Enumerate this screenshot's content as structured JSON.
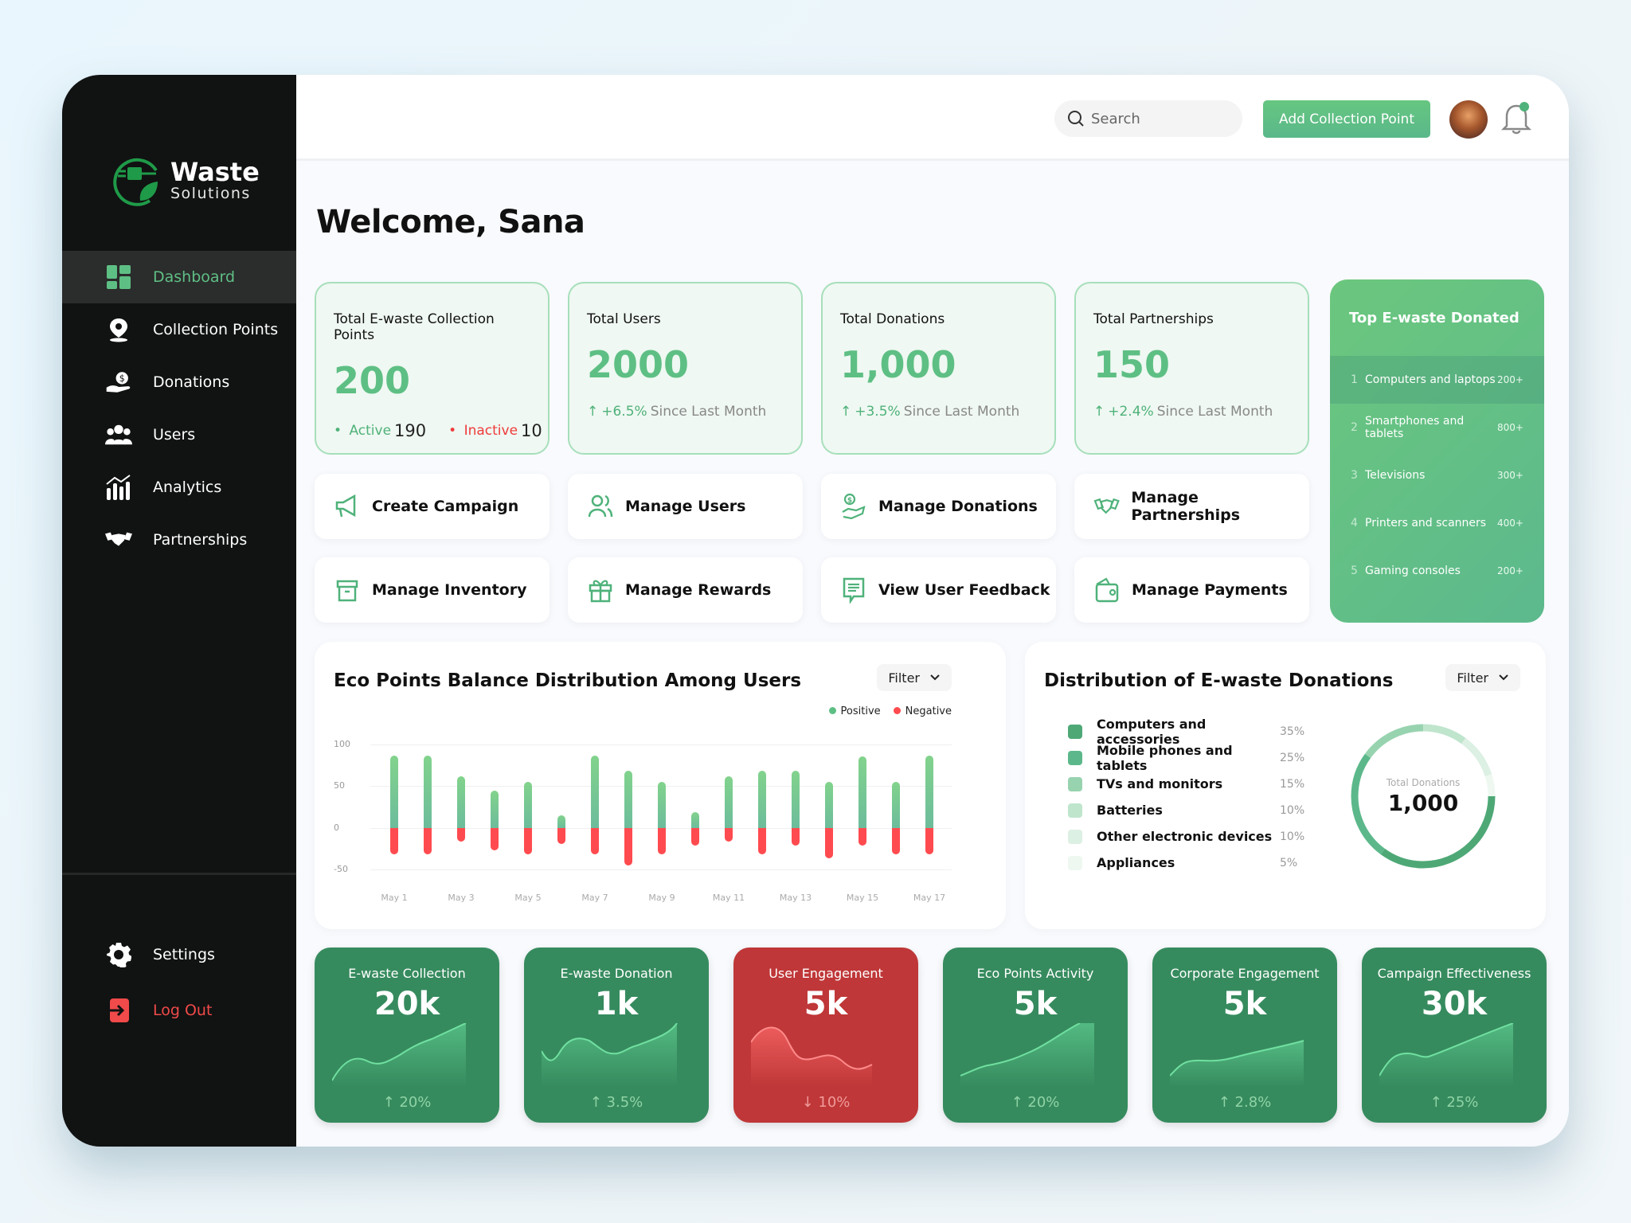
{
  "brand": {
    "name": "Waste",
    "tagline": "Solutions"
  },
  "sidebar": {
    "items": [
      {
        "label": "Dashboard",
        "icon": "dashboard-grid-icon",
        "active": true
      },
      {
        "label": "Collection Points",
        "icon": "map-pin-icon"
      },
      {
        "label": "Donations",
        "icon": "hand-coin-icon"
      },
      {
        "label": "Users",
        "icon": "users-group-icon"
      },
      {
        "label": "Analytics",
        "icon": "bar-chart-trend-icon"
      },
      {
        "label": "Partnerships",
        "icon": "handshake-icon"
      }
    ],
    "bottom": [
      {
        "label": "Settings",
        "icon": "gear-icon"
      },
      {
        "label": "Log Out",
        "icon": "logout-icon"
      }
    ]
  },
  "topbar": {
    "search_placeholder": "Search",
    "add_button": "Add Collection Point",
    "avatar": "user-avatar",
    "notification_badge_color": "#4fb27a"
  },
  "welcome": "Welcome, Sana",
  "stats": [
    {
      "title": "Total E-waste Collection Points",
      "value": "200",
      "active_label": "Active",
      "active_value": "190",
      "inactive_label": "Inactive",
      "inactive_value": "10"
    },
    {
      "title": "Total Users",
      "value": "2000",
      "change": "+6.5%",
      "since": "Since Last Month"
    },
    {
      "title": "Total Donations",
      "value": "1,000",
      "change": "+3.5%",
      "since": "Since Last Month"
    },
    {
      "title": "Total Partnerships",
      "value": "150",
      "change": "+2.4%",
      "since": "Since Last Month"
    }
  ],
  "top_ewaste": {
    "title": "Top E-waste Donated",
    "items": [
      {
        "rank": "1",
        "label": "Computers and laptops",
        "count": "200+"
      },
      {
        "rank": "2",
        "label": "Smartphones and tablets",
        "count": "800+"
      },
      {
        "rank": "3",
        "label": "Televisions",
        "count": "300+"
      },
      {
        "rank": "4",
        "label": "Printers and scanners",
        "count": "400+"
      },
      {
        "rank": "5",
        "label": "Gaming consoles",
        "count": "200+"
      }
    ]
  },
  "actions": [
    {
      "label": "Create Campaign",
      "icon": "megaphone-icon"
    },
    {
      "label": "Manage Users",
      "icon": "users-icon"
    },
    {
      "label": "Manage Donations",
      "icon": "donation-hand-icon"
    },
    {
      "label": "Manage Partnerships",
      "icon": "handshake-icon"
    },
    {
      "label": "Manage Inventory",
      "icon": "box-icon"
    },
    {
      "label": "Manage Rewards",
      "icon": "gift-icon"
    },
    {
      "label": "View User Feedback",
      "icon": "feedback-icon"
    },
    {
      "label": "Manage Payments",
      "icon": "wallet-icon"
    }
  ],
  "eco_chart": {
    "title": "Eco Points Balance Distribution Among Users",
    "filter": "Filter",
    "legend": [
      {
        "label": "Positive",
        "color": "#5ebf84"
      },
      {
        "label": "Negative",
        "color": "#ff4b4f"
      }
    ],
    "yticks": [
      "100",
      "50",
      "0",
      "-50"
    ],
    "xticks": [
      "May 1",
      "May 3",
      "May 5",
      "May 7",
      "May 9",
      "May 11",
      "May 13",
      "May 15",
      "May 17"
    ]
  },
  "distribution": {
    "title": "Distribution of E-waste Donations",
    "filter": "Filter",
    "items": [
      {
        "label": "Computers and accessories",
        "pct": "35%",
        "color": "#4ea876"
      },
      {
        "label": "Mobile phones and tablets",
        "pct": "25%",
        "color": "#5cb88a"
      },
      {
        "label": "TVs and monitors",
        "pct": "15%",
        "color": "#98d3b0"
      },
      {
        "label": "Batteries",
        "pct": "10%",
        "color": "#bfe5cd"
      },
      {
        "label": "Other electronic devices",
        "pct": "10%",
        "color": "#dcf0e3"
      },
      {
        "label": "Appliances",
        "pct": "5%",
        "color": "#eef8f1"
      }
    ],
    "center_label": "Total Donations",
    "center_value": "1,000"
  },
  "kpis": [
    {
      "title": "E-waste Collection",
      "value": "20k",
      "change": "↑ 20%",
      "trend": "up"
    },
    {
      "title": "E-waste Donation",
      "value": "1k",
      "change": "↑ 3.5%",
      "trend": "up"
    },
    {
      "title": "User Engagement",
      "value": "5k",
      "change": "↓ 10%",
      "trend": "down"
    },
    {
      "title": "Eco Points Activity",
      "value": "5k",
      "change": "↑ 20%",
      "trend": "up"
    },
    {
      "title": "Corporate Engagement",
      "value": "5k",
      "change": "↑ 2.8%",
      "trend": "up"
    },
    {
      "title": "Campaign Effectiveness",
      "value": "30k",
      "change": "↑ 25%",
      "trend": "up"
    }
  ],
  "chart_data": [
    {
      "type": "bar",
      "title": "Eco Points Balance Distribution Among Users",
      "categories": [
        "May 1",
        "May 2",
        "May 3",
        "May 4",
        "May 5",
        "May 6",
        "May 7",
        "May 8",
        "May 9",
        "May 10",
        "May 11",
        "May 12",
        "May 13",
        "May 14",
        "May 15",
        "May 16",
        "May 17"
      ],
      "series": [
        {
          "name": "Positive",
          "values": [
            87,
            87,
            62,
            45,
            55,
            15,
            87,
            69,
            55,
            19,
            62,
            69,
            69,
            55,
            86,
            55,
            87
          ]
        },
        {
          "name": "Negative",
          "values": [
            -31,
            -31,
            -16,
            -27,
            -31,
            -19,
            -31,
            -45,
            -31,
            -21,
            -16,
            -31,
            -21,
            -36,
            -21,
            -31,
            -31
          ]
        }
      ],
      "xlabel": "",
      "ylabel": "",
      "ylim": [
        -50,
        100
      ],
      "grid": true,
      "legend_position": "top-right"
    },
    {
      "type": "pie",
      "title": "Distribution of E-waste Donations",
      "categories": [
        "Computers and accessories",
        "Mobile phones and tablets",
        "TVs and monitors",
        "Batteries",
        "Other electronic devices",
        "Appliances"
      ],
      "values": [
        35,
        25,
        15,
        10,
        10,
        5
      ],
      "center_text": "Total Donations 1,000",
      "legend_position": "left"
    }
  ]
}
